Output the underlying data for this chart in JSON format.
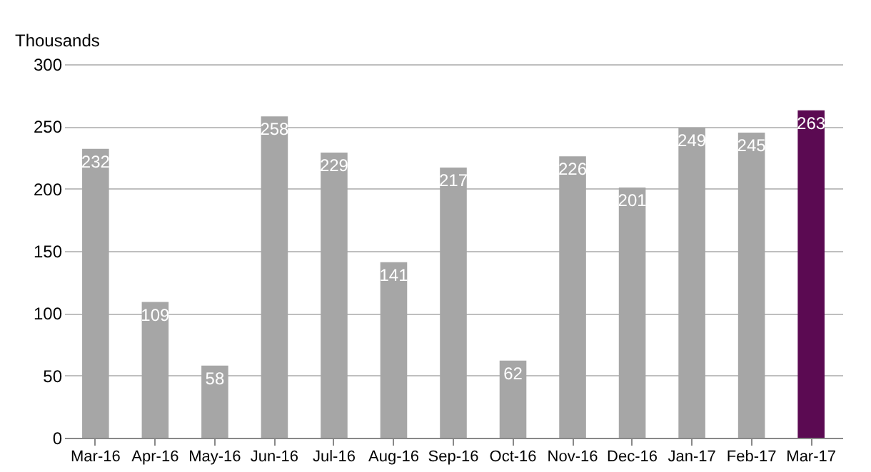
{
  "chart_data": {
    "type": "bar",
    "ylabel": "Thousands",
    "categories": [
      "Mar-16",
      "Apr-16",
      "May-16",
      "Jun-16",
      "Jul-16",
      "Aug-16",
      "Sep-16",
      "Oct-16",
      "Nov-16",
      "Dec-16",
      "Jan-17",
      "Feb-17",
      "Mar-17"
    ],
    "values": [
      232,
      109,
      58,
      258,
      229,
      141,
      217,
      62,
      226,
      201,
      249,
      245,
      263
    ],
    "colors": [
      "#a6a6a6",
      "#a6a6a6",
      "#a6a6a6",
      "#a6a6a6",
      "#a6a6a6",
      "#a6a6a6",
      "#a6a6a6",
      "#a6a6a6",
      "#a6a6a6",
      "#a6a6a6",
      "#a6a6a6",
      "#a6a6a6",
      "#5b0a52"
    ],
    "ylim": [
      0,
      300
    ],
    "yticks": [
      0,
      50,
      100,
      150,
      200,
      250,
      300
    ],
    "grid": "y",
    "data_labels": true
  }
}
